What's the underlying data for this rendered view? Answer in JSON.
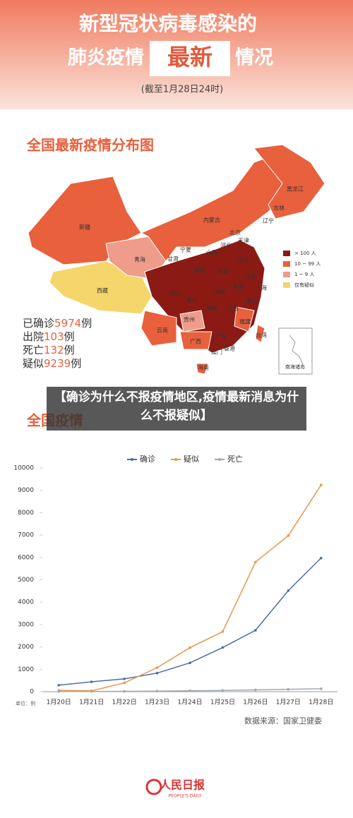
{
  "header": {
    "line1": "新型冠状病毒感染的",
    "line2a": "肺炎疫情",
    "line2b": "最新",
    "line2c": "情况",
    "date": "(截至1月28日24时)"
  },
  "map": {
    "title": "全国最新疫情分布图",
    "labels": [
      "新疆",
      "西藏",
      "青海",
      "甘肃",
      "宁夏",
      "内蒙古",
      "山西",
      "河北",
      "北京",
      "天津",
      "辽宁",
      "吉林",
      "黑龙江",
      "陕西",
      "河南",
      "山东",
      "四川",
      "重庆",
      "湖北",
      "江苏",
      "安徽",
      "上海",
      "浙江",
      "贵州",
      "湖南",
      "江西",
      "云南",
      "广西",
      "广东",
      "福建",
      "台湾",
      "香港",
      "澳门",
      "海南"
    ],
    "legend": [
      "> 100 人",
      "10 ~ 99 人",
      "1 ~ 9 人",
      "仅有疑似"
    ],
    "south_sea": "南海诸岛",
    "stats": [
      {
        "label": "已确诊",
        "number": "5974",
        "unit": "例"
      },
      {
        "label": "出院",
        "number": "103",
        "unit": "例"
      },
      {
        "label": "死亡",
        "number": "132",
        "unit": "例"
      },
      {
        "label": "疑似",
        "number": "9239",
        "unit": "例"
      }
    ]
  },
  "overlay": {
    "caption": "【确诊为什么不报疫情地区,疫情最新消息为什么不报疑似】"
  },
  "chart_section": {
    "title": "全国疫情"
  },
  "chart_data": {
    "type": "line",
    "categories": [
      "1月20日",
      "1月21日",
      "1月22日",
      "1月23日",
      "1月24日",
      "1月25日",
      "1月26日",
      "1月27日",
      "1月28日"
    ],
    "series": [
      {
        "name": "确诊",
        "color": "#4a6fa5",
        "values": [
          291,
          440,
          571,
          830,
          1287,
          1975,
          2744,
          4515,
          5974
        ]
      },
      {
        "name": "疑似",
        "color": "#e8964a",
        "values": [
          54,
          37,
          393,
          1072,
          1965,
          2684,
          5794,
          6973,
          9239
        ]
      },
      {
        "name": "死亡",
        "color": "#a0a8b0",
        "values": [
          6,
          9,
          17,
          25,
          41,
          56,
          80,
          106,
          132
        ]
      }
    ],
    "ylim": [
      0,
      10000
    ],
    "yticks": [
      0,
      1000,
      2000,
      3000,
      4000,
      5000,
      6000,
      7000,
      8000,
      9000,
      10000
    ],
    "y_unit": "单位：例",
    "source": "数据来源：国家卫健委",
    "legend": "top"
  },
  "footer": {
    "logo": "人民日报",
    "logo_en": "PEOPLE'S DAILY"
  }
}
